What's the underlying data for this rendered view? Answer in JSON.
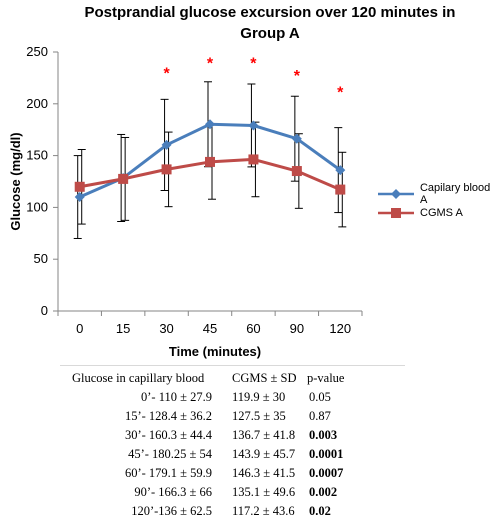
{
  "chart_data": {
    "type": "line",
    "title_line1": "Postprandial glucose excursion over 120 minutes in",
    "title_line2": "Group A",
    "xlabel": "Time (minutes)",
    "ylabel": "Glucose (mg/dl)",
    "categories": [
      "0",
      "15",
      "30",
      "45",
      "60",
      "90",
      "120"
    ],
    "ylim": [
      0,
      250
    ],
    "yticks": [
      "0",
      "50",
      "100",
      "150",
      "200",
      "250"
    ],
    "grid": false,
    "legend_position": "right",
    "series": [
      {
        "name": "Capilary blood A",
        "color": "#4a7ebb",
        "marker": "diamond",
        "values": [
          110,
          128.4,
          160.3,
          180.25,
          179.1,
          166.3,
          136
        ],
        "errors": [
          27.9,
          36.2,
          44.4,
          54,
          59.9,
          66,
          62.5
        ],
        "error_display": [
          40,
          42,
          44,
          41,
          40,
          41,
          41
        ]
      },
      {
        "name": "CGMS A",
        "color": "#be4b48",
        "marker": "square",
        "values": [
          119.9,
          127.5,
          136.7,
          143.9,
          146.3,
          135.1,
          117.2
        ],
        "errors": [
          30,
          35,
          41.8,
          45.7,
          41.5,
          49.6,
          43.6
        ],
        "error_display": [
          36,
          40,
          36,
          36,
          36,
          36,
          36
        ]
      }
    ],
    "significance_markers": [
      "*",
      "*",
      "*",
      "*",
      "*"
    ],
    "significance_x": [
      "30",
      "45",
      "60",
      "90",
      "120"
    ],
    "significance_y": [
      230,
      240,
      240,
      228,
      212
    ],
    "significance_color": "#ff0000"
  },
  "table": {
    "header": {
      "c1": "Glucose in capillary blood",
      "c2": "CGMS ± SD",
      "c3": "p-value"
    },
    "rows": [
      {
        "c1": "0’-    110 ± 27.9",
        "c2": "119.9 ± 30",
        "c3": "0.05",
        "bold": false
      },
      {
        "c1": "15’- 128.4 ± 36.2",
        "c2": "127.5 ± 35",
        "c3": "0.87",
        "bold": false
      },
      {
        "c1": "30’- 160.3 ± 44.4",
        "c2": "136.7 ± 41.8",
        "c3": "0.003",
        "bold": true
      },
      {
        "c1": "45’- 180.25 ± 54",
        "c2": "143.9 ± 45.7",
        "c3": "0.0001",
        "bold": true
      },
      {
        "c1": "60’- 179.1 ± 59.9",
        "c2": "146.3 ± 41.5",
        "c3": "0.0007",
        "bold": true
      },
      {
        "c1": "90’- 166.3 ± 66",
        "c2": "135.1 ± 49.6",
        "c3": "0.002",
        "bold": true
      },
      {
        "c1": "120’-136 ± 62.5",
        "c2": "117.2 ± 43.6",
        "c3": "0.02",
        "bold": true
      }
    ]
  }
}
